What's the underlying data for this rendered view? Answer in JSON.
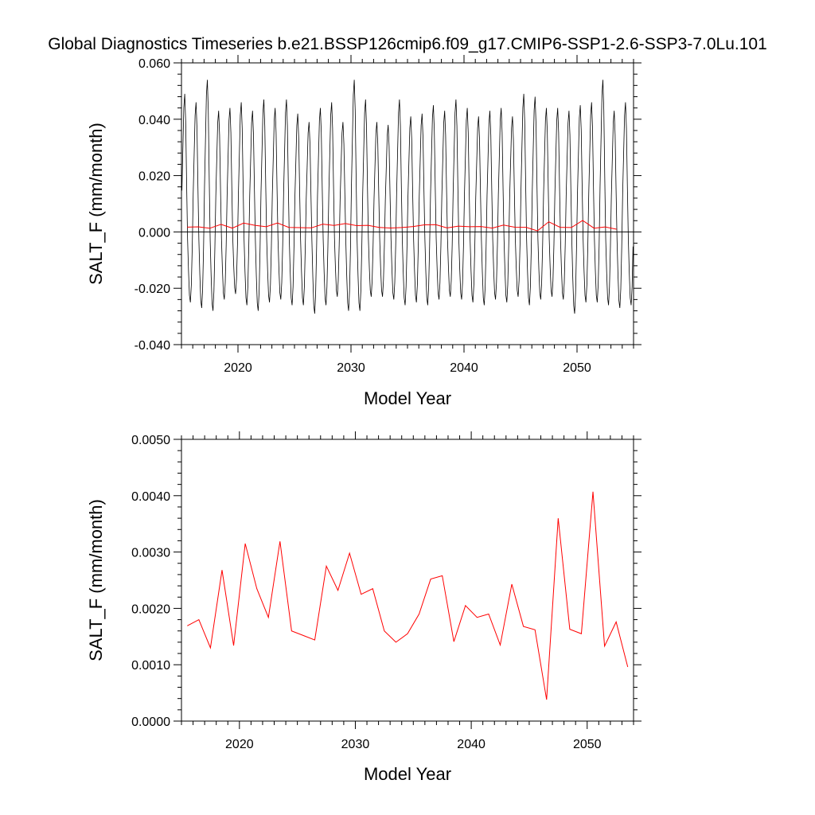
{
  "title": "Global Diagnostics Timeseries b.e21.BSSP126cmip6.f09_g17.CMIP6-SSP1-2.6-SSP3-7.0Lu.101",
  "colors": {
    "monthly": "#000000",
    "annual": "#ff0000",
    "axis": "#000000"
  },
  "chart_data": [
    {
      "type": "line",
      "xlabel": "Model Year",
      "ylabel": "SALT_F (mm/month)",
      "xlim": [
        2015,
        2055
      ],
      "ylim": [
        -0.04,
        0.06
      ],
      "xticks": [
        2020,
        2030,
        2040,
        2050
      ],
      "xtick_labels": [
        "2020",
        "2030",
        "2040",
        "2050"
      ],
      "yticks": [
        -0.04,
        -0.02,
        0.0,
        0.02,
        0.04,
        0.06
      ],
      "ytick_labels": [
        "-0.040",
        "-0.020",
        "0.000",
        "0.020",
        "0.040",
        "0.060"
      ],
      "zero_line": true,
      "series": [
        {
          "color": "#000000",
          "x_start": 2015.04,
          "x_step": 0.08333,
          "monthly_cycle_shape": [
            0.3,
            0.6,
            0.9,
            1.0,
            0.8,
            0.35,
            -0.1,
            -0.55,
            -0.9,
            -1.0,
            -0.75,
            -0.2
          ],
          "annual_peak": [
            0.049,
            0.046,
            0.054,
            0.043,
            0.044,
            0.046,
            0.043,
            0.047,
            0.044,
            0.047,
            0.042,
            0.039,
            0.044,
            0.046,
            0.039,
            0.054,
            0.047,
            0.039,
            0.038,
            0.047,
            0.041,
            0.042,
            0.045,
            0.043,
            0.047,
            0.044,
            0.041,
            0.043,
            0.044,
            0.041,
            0.049,
            0.048,
            0.044,
            0.044,
            0.043,
            0.045,
            0.046,
            0.054,
            0.043,
            0.046
          ],
          "annual_trough": [
            -0.025,
            -0.027,
            -0.028,
            -0.024,
            -0.022,
            -0.026,
            -0.028,
            -0.025,
            -0.024,
            -0.026,
            -0.026,
            -0.029,
            -0.026,
            -0.023,
            -0.028,
            -0.028,
            -0.023,
            -0.023,
            -0.024,
            -0.026,
            -0.025,
            -0.026,
            -0.024,
            -0.023,
            -0.024,
            -0.025,
            -0.026,
            -0.024,
            -0.025,
            -0.023,
            -0.026,
            -0.024,
            -0.023,
            -0.024,
            -0.029,
            -0.025,
            -0.025,
            -0.026,
            -0.027,
            -0.026
          ]
        },
        {
          "color": "#ff0000",
          "x_start": 2015.5,
          "x_step": 1.0,
          "values": [
            0.00169,
            0.0018,
            0.0013,
            0.00268,
            0.00134,
            0.00315,
            0.00235,
            0.00184,
            0.00319,
            0.0016,
            0.00152,
            0.00144,
            0.00275,
            0.00232,
            0.00298,
            0.00225,
            0.00235,
            0.0016,
            0.0014,
            0.00155,
            0.0019,
            0.00252,
            0.00258,
            0.00141,
            0.00205,
            0.00184,
            0.0019,
            0.00135,
            0.00243,
            0.00168,
            0.00162,
            0.00038,
            0.0036,
            0.00163,
            0.00155,
            0.00407,
            0.00133,
            0.00176,
            0.00096
          ]
        }
      ]
    },
    {
      "type": "line",
      "xlabel": "Model Year",
      "ylabel": "SALT_F (mm/month)",
      "xlim": [
        2015,
        2054
      ],
      "ylim": [
        0.0,
        0.005
      ],
      "xticks": [
        2020,
        2030,
        2040,
        2050
      ],
      "xtick_labels": [
        "2020",
        "2030",
        "2040",
        "2050"
      ],
      "yticks": [
        0.0,
        0.001,
        0.002,
        0.003,
        0.004,
        0.005
      ],
      "ytick_labels": [
        "0.0000",
        "0.0010",
        "0.0020",
        "0.0030",
        "0.0040",
        "0.0050"
      ],
      "zero_line": false,
      "series": [
        {
          "color": "#ff0000",
          "x_start": 2015.5,
          "x_step": 1.0,
          "values": [
            0.00169,
            0.0018,
            0.0013,
            0.00268,
            0.00134,
            0.00315,
            0.00235,
            0.00184,
            0.00319,
            0.0016,
            0.00152,
            0.00144,
            0.00275,
            0.00232,
            0.00298,
            0.00225,
            0.00235,
            0.0016,
            0.0014,
            0.00155,
            0.0019,
            0.00252,
            0.00258,
            0.00141,
            0.00205,
            0.00184,
            0.0019,
            0.00135,
            0.00243,
            0.00168,
            0.00162,
            0.00038,
            0.0036,
            0.00163,
            0.00155,
            0.00407,
            0.00133,
            0.00176,
            0.00096
          ]
        }
      ]
    }
  ]
}
